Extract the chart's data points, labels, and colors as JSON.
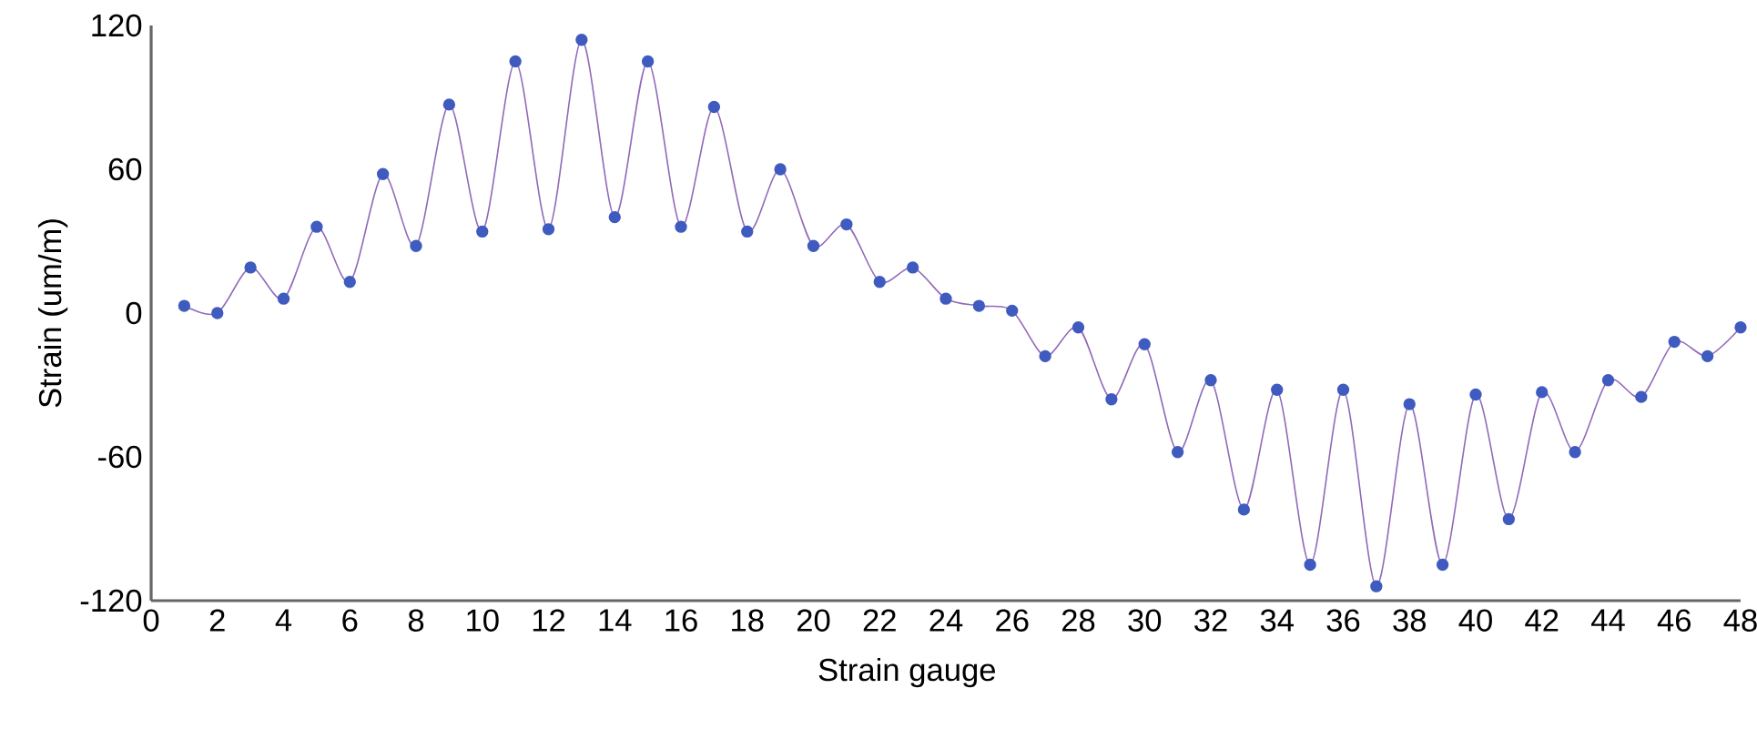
{
  "chart_data": {
    "type": "line",
    "xlabel": "Strain gauge",
    "ylabel": "Strain (um/m)",
    "x": [
      1,
      2,
      3,
      4,
      5,
      6,
      7,
      8,
      9,
      10,
      11,
      12,
      13,
      14,
      15,
      16,
      17,
      18,
      19,
      20,
      21,
      22,
      23,
      24,
      25,
      26,
      27,
      28,
      29,
      30,
      31,
      32,
      33,
      34,
      35,
      36,
      37,
      38,
      39,
      40,
      41,
      42,
      43,
      44,
      45,
      46,
      47,
      48
    ],
    "series": [
      {
        "color": "#3f5bbf",
        "values": [
          3,
          0,
          19,
          6,
          36,
          13,
          58,
          28,
          87,
          34,
          105,
          35,
          114,
          40,
          105,
          36,
          86,
          34,
          60,
          28,
          37,
          13,
          19,
          6,
          3,
          1,
          -18,
          -6,
          -36,
          -13,
          -58,
          -28,
          -82,
          -32,
          -105,
          -32,
          -114,
          -38,
          -105,
          -34,
          -86,
          -33,
          -58,
          -28,
          -35,
          -12,
          -18,
          -6
        ]
      }
    ],
    "xlim": [
      0,
      48
    ],
    "xticks": [
      0,
      2,
      4,
      6,
      8,
      10,
      12,
      14,
      16,
      18,
      20,
      22,
      24,
      26,
      28,
      30,
      32,
      34,
      36,
      38,
      40,
      42,
      44,
      46,
      48
    ],
    "ylim": [
      -120,
      120
    ],
    "yticks": [
      -120,
      -60,
      0,
      60,
      120
    ],
    "grid": false,
    "marker": "circle",
    "line_style": "solid"
  }
}
